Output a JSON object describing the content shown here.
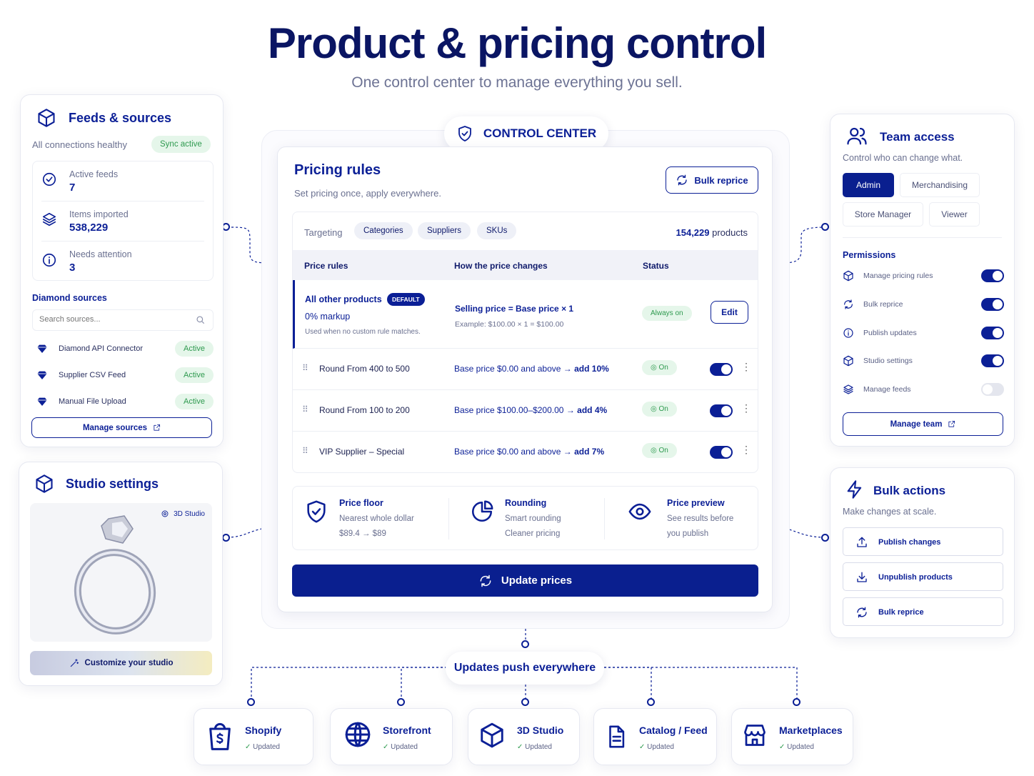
{
  "header": {
    "title": "Product & pricing control",
    "subtitle": "One control center to manage everything you sell."
  },
  "feeds": {
    "title": "Feeds & sources",
    "health": "All connections healthy",
    "sync": "Sync active",
    "stats": [
      {
        "label": "Active feeds",
        "value": "7"
      },
      {
        "label": "Items imported",
        "value": "538,229"
      },
      {
        "label": "Needs attention",
        "value": "3"
      }
    ],
    "sources_title": "Diamond sources",
    "search_placeholder": "Search sources...",
    "sources": [
      {
        "name": "Diamond API Connector",
        "status": "Active"
      },
      {
        "name": "Supplier CSV Feed",
        "status": "Active"
      },
      {
        "name": "Manual File Upload",
        "status": "Active"
      }
    ],
    "manage": "Manage sources"
  },
  "studio": {
    "title": "Studio settings",
    "badge": "3D Studio",
    "customize": "Customize your studio"
  },
  "control": {
    "label": "CONTROL CENTER",
    "title": "Pricing rules",
    "subtitle": "Set pricing once, apply everywhere.",
    "bulk": "Bulk reprice",
    "targeting": "Targeting",
    "chips": [
      "Categories",
      "Suppliers",
      "SKUs"
    ],
    "count": "154,229",
    "count_suffix": "products",
    "cols": [
      "Price rules",
      "How the price changes",
      "Status"
    ],
    "default_rule": {
      "name": "All other products",
      "tag": "DEFAULT",
      "markup": "0% markup",
      "note": "Used when no custom rule matches.",
      "formula": "Selling price = Base price × 1",
      "example": "Example: $100.00 × 1 = $100.00",
      "status": "Always on",
      "edit": "Edit"
    },
    "rules": [
      {
        "name": "Round From 400 to 500",
        "desc": "Base price $0.00 and above",
        "arrow": "→ add 10%",
        "status": "On"
      },
      {
        "name": "Round From 100 to 200",
        "desc": "Base price $100.00–$200.00",
        "arrow": "→ add 4%",
        "status": "On"
      },
      {
        "name": "VIP Supplier – Special",
        "desc": "Base price $0.00 and above",
        "arrow": "→ add 7%",
        "status": "On"
      }
    ],
    "features": [
      {
        "title": "Price floor",
        "l1": "Nearest whole dollar",
        "l2": "$89.4 → $89"
      },
      {
        "title": "Rounding",
        "l1": "Smart rounding",
        "l2": "Cleaner pricing"
      },
      {
        "title": "Price preview",
        "l1": "See results before",
        "l2": "you publish"
      }
    ],
    "update": "Update prices"
  },
  "team": {
    "title": "Team access",
    "subtitle": "Control who can change what.",
    "roles": [
      "Admin",
      "Merchandising",
      "Store Manager",
      "Viewer"
    ],
    "perm_title": "Permissions",
    "perms": [
      {
        "label": "Manage pricing rules",
        "on": true
      },
      {
        "label": "Bulk reprice",
        "on": true
      },
      {
        "label": "Publish updates",
        "on": true
      },
      {
        "label": "Studio settings",
        "on": true
      },
      {
        "label": "Manage feeds",
        "on": false
      }
    ],
    "manage": "Manage team"
  },
  "bulk": {
    "title": "Bulk actions",
    "subtitle": "Make changes at scale.",
    "actions": [
      "Publish changes",
      "Unpublish products",
      "Bulk reprice"
    ]
  },
  "push": {
    "label": "Updates push everywhere",
    "targets": [
      {
        "name": "Shopify",
        "status": "Updated"
      },
      {
        "name": "Storefront",
        "status": "Updated"
      },
      {
        "name": "3D Studio",
        "status": "Updated"
      },
      {
        "name": "Catalog / Feed",
        "status": "Updated"
      },
      {
        "name": "Marketplaces",
        "status": "Updated"
      }
    ]
  },
  "colors": {
    "navy": "#0b1f96",
    "green": "#2e9a4f"
  }
}
